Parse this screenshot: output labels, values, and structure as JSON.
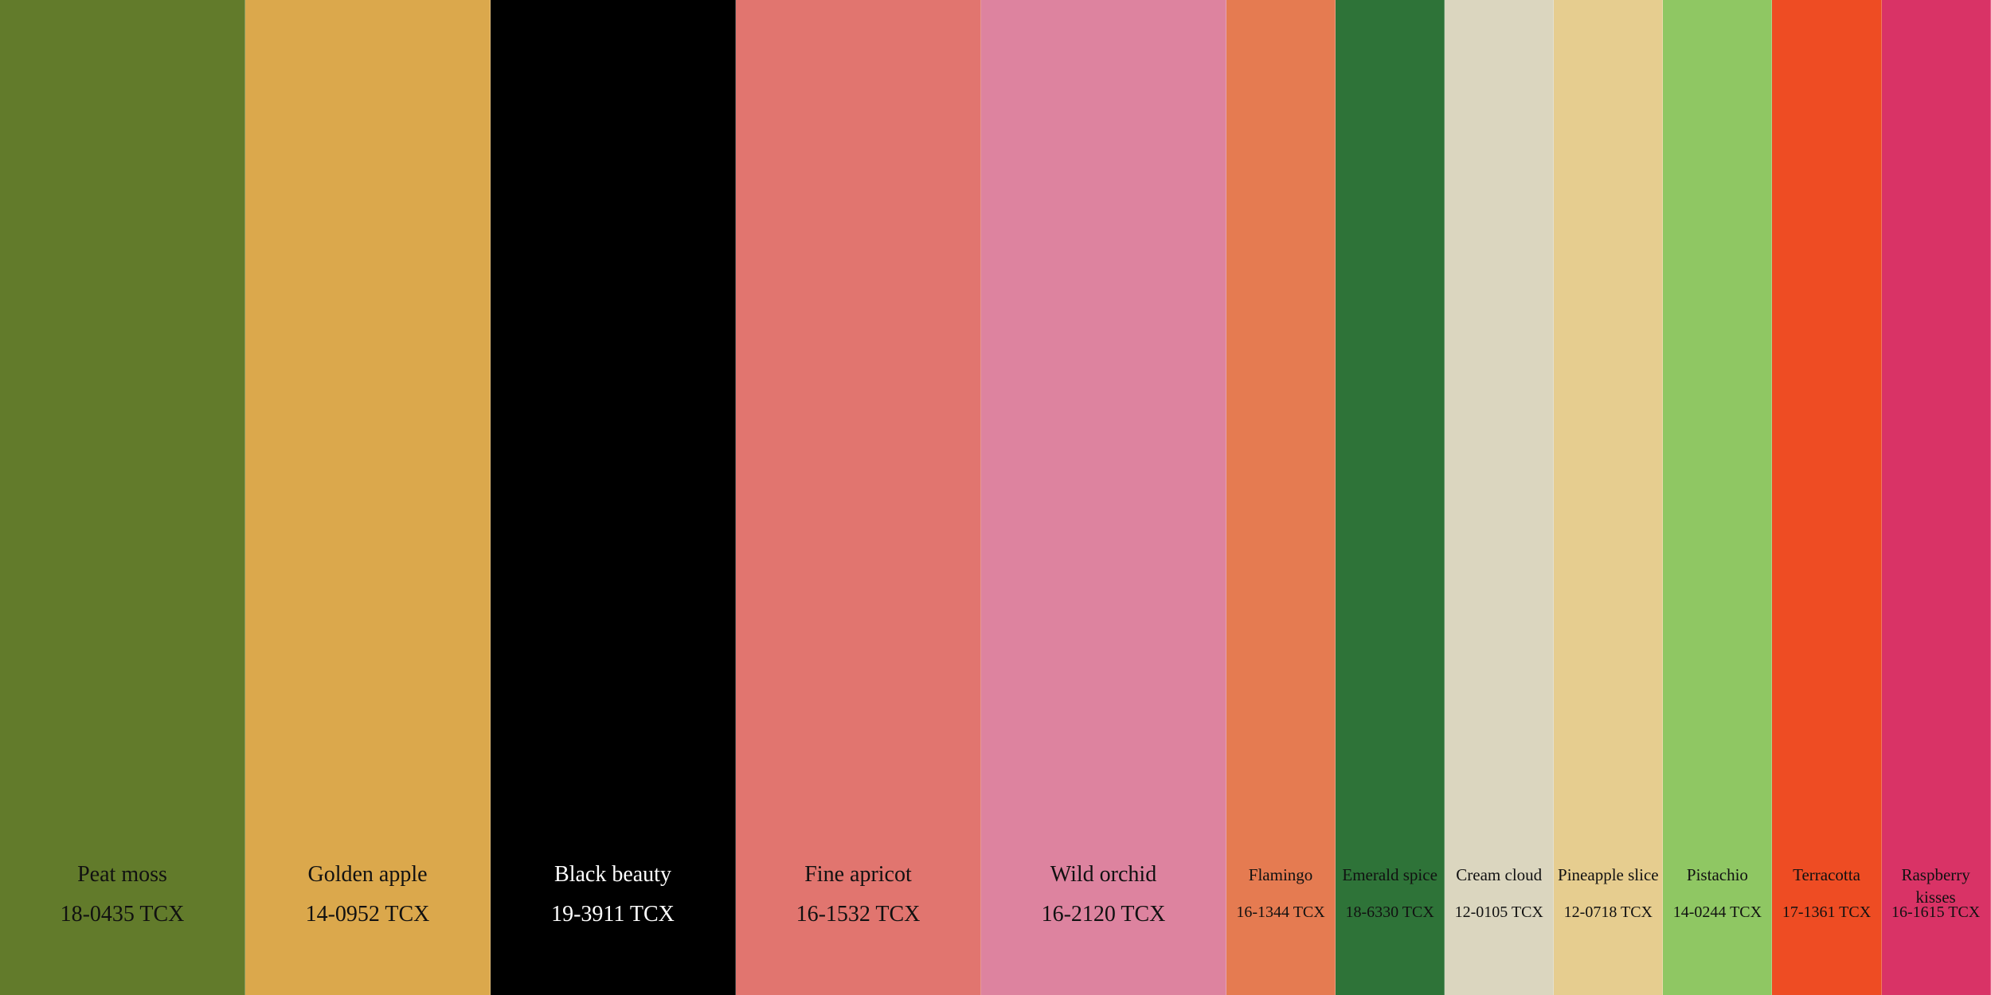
{
  "swatches": [
    {
      "name": "Peat moss",
      "code": "18-0435 TCX",
      "color": "#627b2b"
    },
    {
      "name": "Golden apple",
      "code": "14-0952 TCX",
      "color": "#dba84c"
    },
    {
      "name": "Black beauty",
      "code": "19-3911 TCX",
      "color": "#000000"
    },
    {
      "name": "Fine apricot",
      "code": "16-1532 TCX",
      "color": "#e1756f"
    },
    {
      "name": "Wild orchid",
      "code": "16-2120 TCX",
      "color": "#dd839f"
    },
    {
      "name": "Flamingo",
      "code": "16-1344 TCX",
      "color": "#e57b51"
    },
    {
      "name": "Emerald spice",
      "code": "18-6330 TCX",
      "color": "#2e7338"
    },
    {
      "name": "Cream cloud",
      "code": "12-0105 TCX",
      "color": "#dbd6bf"
    },
    {
      "name": "Pineapple slice",
      "code": "12-0718 TCX",
      "color": "#e6cd8f"
    },
    {
      "name": "Pistachio",
      "code": "14-0244 TCX",
      "color": "#8fc763"
    },
    {
      "name": "Terracotta",
      "code": "17-1361 TCX",
      "color": "#ee4c23"
    },
    {
      "name": "Raspberry kisses",
      "code": "16-1615 TCX",
      "color": "#d93366"
    }
  ]
}
